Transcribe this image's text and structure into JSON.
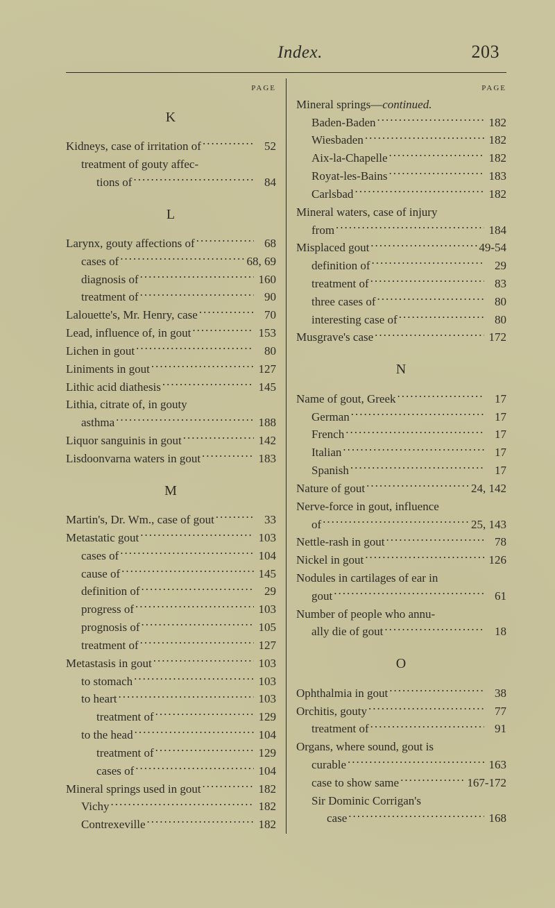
{
  "header": {
    "title": "Index.",
    "pagenum": "203"
  },
  "labels": {
    "page_left": "PAGE",
    "page_right": "PAGE"
  },
  "left": {
    "sections": [
      {
        "letter": "K",
        "entries": [
          {
            "text": "Kidneys, case of irritation of",
            "page": "52",
            "level": 0
          },
          {
            "text": "treatment of gouty affec-",
            "page": "",
            "level": 1,
            "noleaders": true
          },
          {
            "text": "tions of",
            "page": "84",
            "level": 2
          }
        ]
      },
      {
        "letter": "L",
        "entries": [
          {
            "text": "Larynx, gouty affections of",
            "page": "68",
            "level": 0
          },
          {
            "text": "cases of",
            "page": "68, 69",
            "level": 1
          },
          {
            "text": "diagnosis of",
            "page": "160",
            "level": 1
          },
          {
            "text": "treatment of",
            "page": "90",
            "level": 1
          },
          {
            "text": "Lalouette's, Mr. Henry, case",
            "page": "70",
            "level": 0
          },
          {
            "text": "Lead, influence of, in gout",
            "page": "153",
            "level": 0
          },
          {
            "text": "Lichen in gout",
            "page": "80",
            "level": 0
          },
          {
            "text": "Liniments in gout",
            "page": "127",
            "level": 0
          },
          {
            "text": "Lithic acid diathesis",
            "page": "145",
            "level": 0
          },
          {
            "text": "Lithia, citrate of, in gouty",
            "page": "",
            "level": 0,
            "noleaders": true
          },
          {
            "text": "asthma",
            "page": "188",
            "level": 1
          },
          {
            "text": "Liquor sanguinis in gout",
            "page": "142",
            "level": 0
          },
          {
            "text": "Lisdoonvarna waters in gout",
            "page": "183",
            "level": 0
          }
        ]
      },
      {
        "letter": "M",
        "entries": [
          {
            "text": "Martin's, Dr. Wm., case of gout",
            "page": "33",
            "level": 0
          },
          {
            "text": "Metastatic gout",
            "page": "103",
            "level": 0
          },
          {
            "text": "cases of",
            "page": "104",
            "level": 1
          },
          {
            "text": "cause of",
            "page": "145",
            "level": 1
          },
          {
            "text": "definition of",
            "page": "29",
            "level": 1
          },
          {
            "text": "progress of",
            "page": "103",
            "level": 1
          },
          {
            "text": "prognosis of",
            "page": "105",
            "level": 1
          },
          {
            "text": "treatment of",
            "page": "127",
            "level": 1
          },
          {
            "text": "Metastasis in gout",
            "page": "103",
            "level": 0
          },
          {
            "text": "to stomach",
            "page": "103",
            "level": 1
          },
          {
            "text": "to heart",
            "page": "103",
            "level": 1
          },
          {
            "text": "treatment of",
            "page": "129",
            "level": 2
          },
          {
            "text": "to the head",
            "page": "104",
            "level": 1
          },
          {
            "text": "treatment of",
            "page": "129",
            "level": 2
          },
          {
            "text": "cases of",
            "page": "104",
            "level": 2
          },
          {
            "text": "Mineral springs used in gout",
            "page": "182",
            "level": 0
          },
          {
            "text": "Vichy",
            "page": "182",
            "level": 1
          },
          {
            "text": "Contrexeville",
            "page": "182",
            "level": 1
          }
        ]
      }
    ]
  },
  "right": {
    "leadin": {
      "title_a": "Mineral springs—",
      "title_b": "continued.",
      "entries": [
        {
          "text": "Baden-Baden",
          "page": "182",
          "level": 1
        },
        {
          "text": "Wiesbaden",
          "page": "182",
          "level": 1
        },
        {
          "text": "Aix-la-Chapelle",
          "page": "182",
          "level": 1
        },
        {
          "text": "Royat-les-Bains",
          "page": "183",
          "level": 1
        },
        {
          "text": "Carlsbad",
          "page": "182",
          "level": 1
        },
        {
          "text": "Mineral waters, case of injury",
          "page": "",
          "level": 0,
          "noleaders": true
        },
        {
          "text": "from",
          "page": "184",
          "level": 1
        },
        {
          "text": "Misplaced gout",
          "page": "49-54",
          "level": 0
        },
        {
          "text": "definition of",
          "page": "29",
          "level": 1
        },
        {
          "text": "treatment of",
          "page": "83",
          "level": 1
        },
        {
          "text": "three cases of",
          "page": "80",
          "level": 1
        },
        {
          "text": "interesting case of",
          "page": "80",
          "level": 1
        },
        {
          "text": "Musgrave's case",
          "page": "172",
          "level": 0
        }
      ]
    },
    "sections": [
      {
        "letter": "N",
        "entries": [
          {
            "text": "Name of gout, Greek",
            "page": "17",
            "level": 0
          },
          {
            "text": "German",
            "page": "17",
            "level": 1
          },
          {
            "text": "French",
            "page": "17",
            "level": 1
          },
          {
            "text": "Italian",
            "page": "17",
            "level": 1
          },
          {
            "text": "Spanish",
            "page": "17",
            "level": 1
          },
          {
            "text": "Nature of gout",
            "page": "24, 142",
            "level": 0
          },
          {
            "text": "Nerve-force in gout, influence",
            "page": "",
            "level": 0,
            "noleaders": true
          },
          {
            "text": "of",
            "page": "25, 143",
            "level": 1
          },
          {
            "text": "Nettle-rash in gout",
            "page": "78",
            "level": 0
          },
          {
            "text": "Nickel in gout",
            "page": "126",
            "level": 0
          },
          {
            "text": "Nodules in cartilages of ear in",
            "page": "",
            "level": 0,
            "noleaders": true
          },
          {
            "text": "gout",
            "page": "61",
            "level": 1
          },
          {
            "text": "Number of people who annu-",
            "page": "",
            "level": 0,
            "noleaders": true
          },
          {
            "text": "ally die of gout",
            "page": "18",
            "level": 1
          }
        ]
      },
      {
        "letter": "O",
        "entries": [
          {
            "text": "Ophthalmia in gout",
            "page": "38",
            "level": 0
          },
          {
            "text": "Orchitis, gouty",
            "page": "77",
            "level": 0
          },
          {
            "text": "treatment of",
            "page": "91",
            "level": 1
          },
          {
            "text": "Organs, where sound, gout is",
            "page": "",
            "level": 0,
            "noleaders": true
          },
          {
            "text": "curable",
            "page": "163",
            "level": 1
          },
          {
            "text": "case to show same",
            "page": "167-172",
            "level": 1
          },
          {
            "text": "Sir Dominic Corrigan's",
            "page": "",
            "level": 1,
            "noleaders": true
          },
          {
            "text": "case",
            "page": "168",
            "level": 2
          }
        ]
      }
    ]
  }
}
